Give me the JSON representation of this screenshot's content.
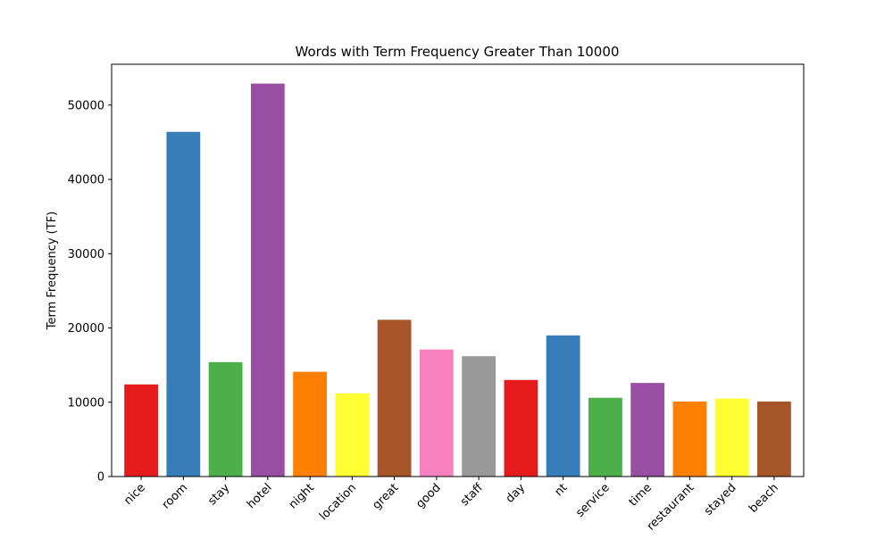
{
  "chart_data": {
    "type": "bar",
    "title": "Words with Term Frequency Greater Than 10000",
    "xlabel": "",
    "ylabel": "Term Frequency (TF)",
    "ylim": [
      0,
      55500
    ],
    "yticks": [
      0,
      10000,
      20000,
      30000,
      40000,
      50000
    ],
    "grid": false,
    "categories": [
      "nice",
      "room",
      "stay",
      "hotel",
      "night",
      "location",
      "great",
      "good",
      "staff",
      "day",
      "nt",
      "service",
      "time",
      "restaurant",
      "stayed",
      "beach"
    ],
    "values": [
      12400,
      46400,
      15400,
      52900,
      14100,
      11200,
      21100,
      17100,
      16200,
      13000,
      19000,
      10600,
      12600,
      10100,
      10500,
      10100
    ],
    "colors": [
      "#e41a1c",
      "#377eb8",
      "#4daf4a",
      "#984ea3",
      "#ff7f00",
      "#ffff33",
      "#a65628",
      "#f781bf",
      "#999999",
      "#e41a1c",
      "#377eb8",
      "#4daf4a",
      "#984ea3",
      "#ff7f00",
      "#ffff33",
      "#a65628"
    ]
  }
}
